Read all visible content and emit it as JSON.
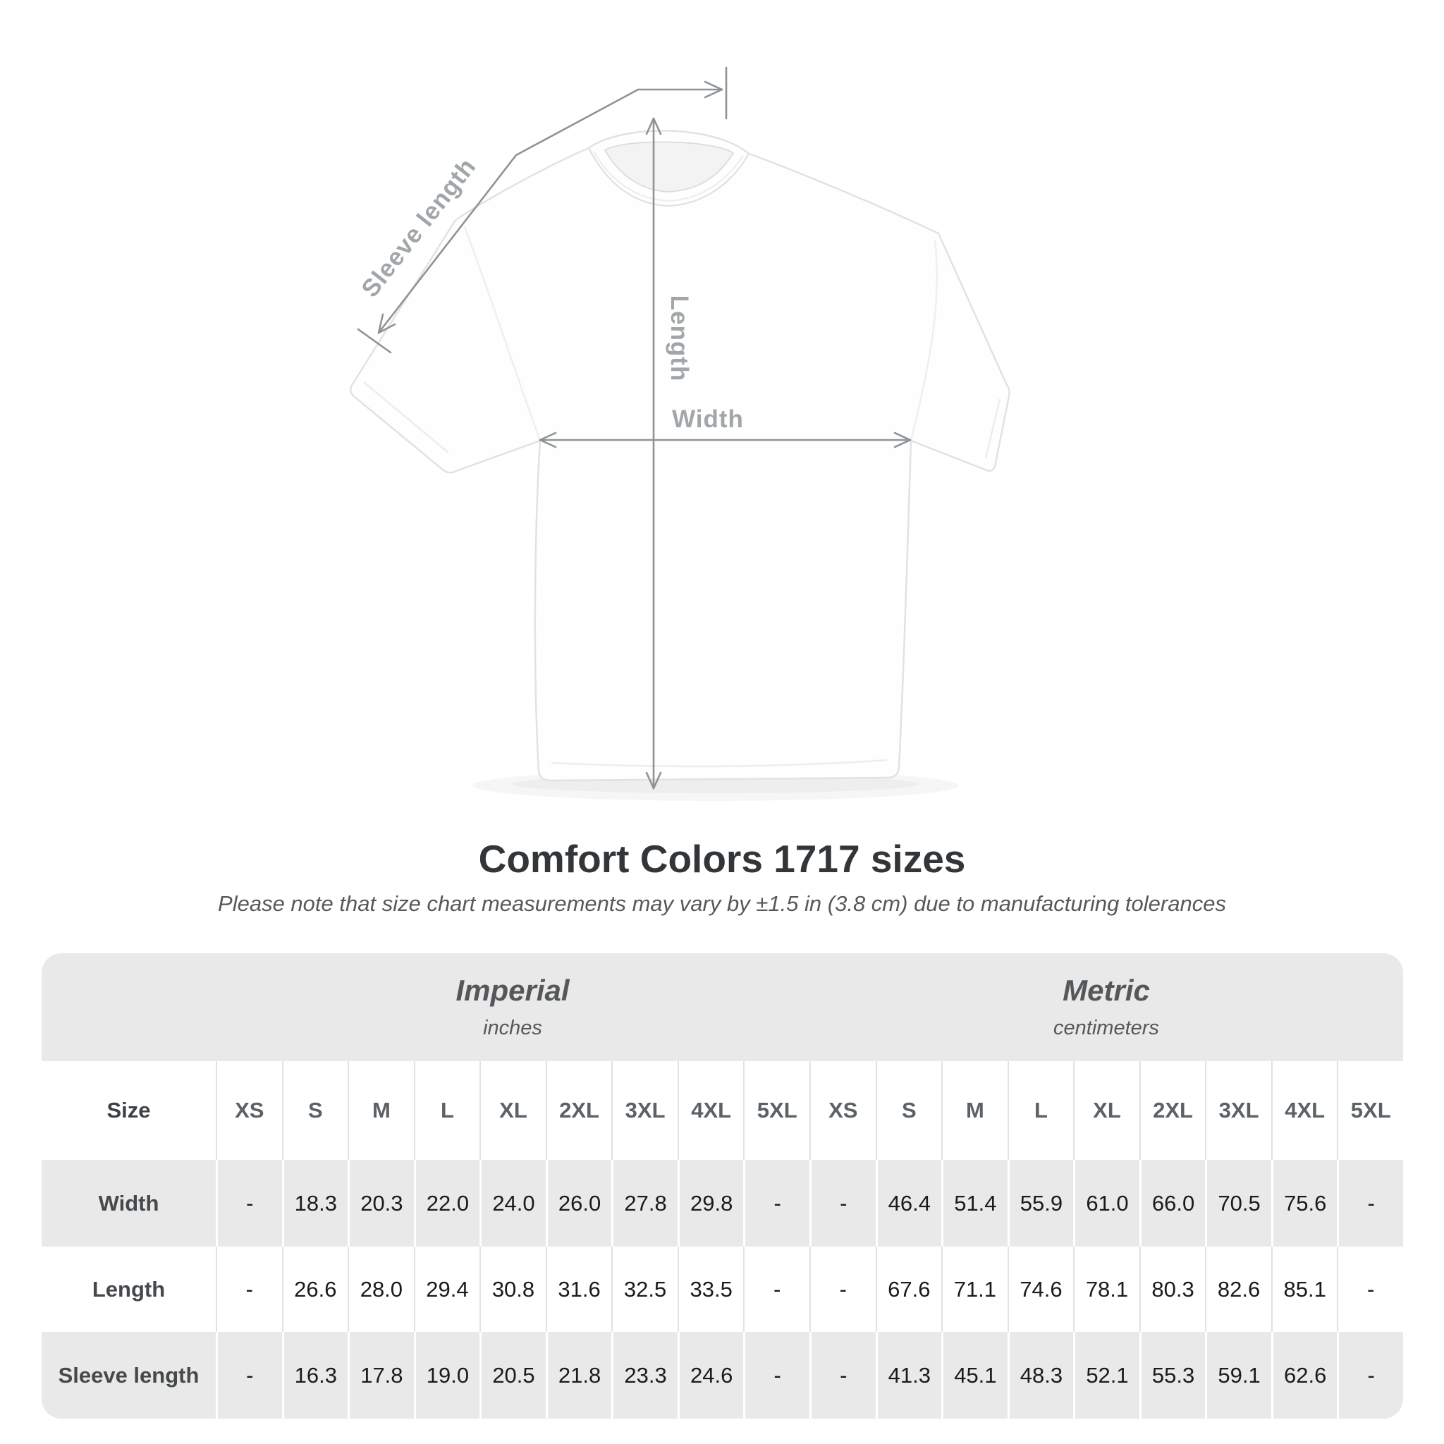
{
  "diagram": {
    "labels": {
      "sleeve": "Sleeve length",
      "length": "Length",
      "width": "Width"
    },
    "line_color": "#8d9396",
    "label_color": "#a1a6a9"
  },
  "header": {
    "title": "Comfort Colors 1717 sizes",
    "subtitle": "Please note that size chart measurements may vary by ±1.5 in (3.8 cm) due to manufacturing tolerances"
  },
  "table": {
    "size_header": "Size",
    "groups": [
      {
        "label": "Imperial",
        "unit": "inches"
      },
      {
        "label": "Metric",
        "unit": "centimeters"
      }
    ],
    "sizes": [
      "XS",
      "S",
      "M",
      "L",
      "XL",
      "2XL",
      "3XL",
      "4XL",
      "5XL"
    ],
    "rows": [
      {
        "label": "Width",
        "imperial": [
          "-",
          "18.3",
          "20.3",
          "22.0",
          "24.0",
          "26.0",
          "27.8",
          "29.8",
          "-"
        ],
        "metric": [
          "-",
          "46.4",
          "51.4",
          "55.9",
          "61.0",
          "66.0",
          "70.5",
          "75.6",
          "-"
        ]
      },
      {
        "label": "Length",
        "imperial": [
          "-",
          "26.6",
          "28.0",
          "29.4",
          "30.8",
          "31.6",
          "32.5",
          "33.5",
          "-"
        ],
        "metric": [
          "-",
          "67.6",
          "71.1",
          "74.6",
          "78.1",
          "80.3",
          "82.6",
          "85.1",
          "-"
        ]
      },
      {
        "label": "Sleeve length",
        "imperial": [
          "-",
          "16.3",
          "17.8",
          "19.0",
          "20.5",
          "21.8",
          "23.3",
          "24.6",
          "-"
        ],
        "metric": [
          "-",
          "41.3",
          "45.1",
          "48.3",
          "52.1",
          "55.3",
          "59.1",
          "62.6",
          "-"
        ]
      }
    ],
    "band_color": "#e9e9e9"
  },
  "chart_data": {
    "type": "table",
    "title": "Comfort Colors 1717 sizes",
    "note": "Please note that size chart measurements may vary by ±1.5 in (3.8 cm) due to manufacturing tolerances",
    "column_groups": [
      {
        "name": "Imperial",
        "unit": "inches"
      },
      {
        "name": "Metric",
        "unit": "centimeters"
      }
    ],
    "sizes": [
      "XS",
      "S",
      "M",
      "L",
      "XL",
      "2XL",
      "3XL",
      "4XL",
      "5XL"
    ],
    "rows": [
      {
        "measurement": "Width",
        "imperial_in": [
          null,
          18.3,
          20.3,
          22.0,
          24.0,
          26.0,
          27.8,
          29.8,
          null
        ],
        "metric_cm": [
          null,
          46.4,
          51.4,
          55.9,
          61.0,
          66.0,
          70.5,
          75.6,
          null
        ]
      },
      {
        "measurement": "Length",
        "imperial_in": [
          null,
          26.6,
          28.0,
          29.4,
          30.8,
          31.6,
          32.5,
          33.5,
          null
        ],
        "metric_cm": [
          null,
          67.6,
          71.1,
          74.6,
          78.1,
          80.3,
          82.6,
          85.1,
          null
        ]
      },
      {
        "measurement": "Sleeve length",
        "imperial_in": [
          null,
          16.3,
          17.8,
          19.0,
          20.5,
          21.8,
          23.3,
          24.6,
          null
        ],
        "metric_cm": [
          null,
          41.3,
          45.1,
          48.3,
          52.1,
          55.3,
          59.1,
          62.6,
          null
        ]
      }
    ]
  }
}
